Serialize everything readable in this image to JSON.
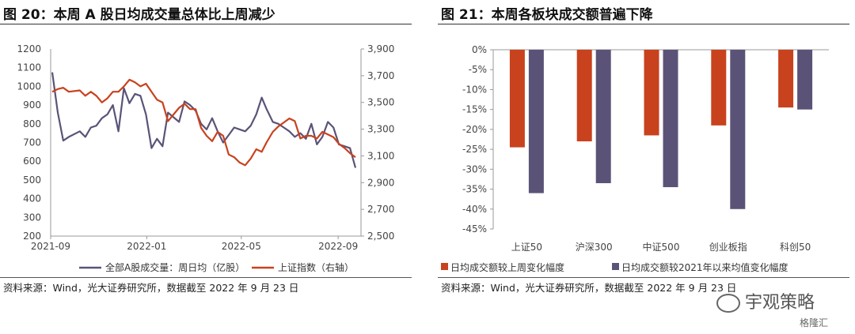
{
  "left": {
    "title": "图 20：本周 A 股日均成交量总体比上周减少",
    "source": "资料来源：Wind，光大证券研究所，数据截至 2022 年 9 月 23 日"
  },
  "right": {
    "title": "图 21：本周各板块成交额普遍下降",
    "source": "资料来源：Wind，光大证券研究所，数据截至 2022 年 9 月 23 日"
  },
  "watermark": {
    "main": "宇观策略",
    "sub": "格隆汇"
  },
  "colors": {
    "series_a": "#5b5377",
    "series_b": "#c8421e"
  },
  "chart_data": [
    {
      "type": "line",
      "title": "",
      "x_ticks": [
        "2021-09",
        "2022-01",
        "2022-05",
        "2022-09"
      ],
      "ylim_left": [
        200,
        1200
      ],
      "yticks_left": [
        "200",
        "300",
        "400",
        "500",
        "600",
        "700",
        "800",
        "900",
        "1000",
        "1100",
        "1200"
      ],
      "ylim_right": [
        2500,
        3900
      ],
      "yticks_right": [
        "2,500",
        "2,700",
        "2,900",
        "3,100",
        "3,300",
        "3,500",
        "3,700",
        "3,900"
      ],
      "legend_position": "bottom",
      "series": [
        {
          "name": "全部A股成交量：周日均（亿股）",
          "axis": "left",
          "color": "#5b5377",
          "x": [
            "2021-09-03",
            "2021-09-10",
            "2021-09-17",
            "2021-09-24",
            "2021-10-08",
            "2021-10-15",
            "2021-10-22",
            "2021-10-29",
            "2021-11-05",
            "2021-11-12",
            "2021-11-19",
            "2021-11-26",
            "2021-12-03",
            "2021-12-10",
            "2021-12-17",
            "2021-12-24",
            "2021-12-31",
            "2022-01-07",
            "2022-01-14",
            "2022-01-21",
            "2022-01-28",
            "2022-02-11",
            "2022-02-18",
            "2022-02-25",
            "2022-03-04",
            "2022-03-11",
            "2022-03-18",
            "2022-03-25",
            "2022-04-01",
            "2022-04-08",
            "2022-04-15",
            "2022-04-22",
            "2022-04-29",
            "2022-05-06",
            "2022-05-13",
            "2022-05-20",
            "2022-05-27",
            "2022-06-02",
            "2022-06-10",
            "2022-06-17",
            "2022-06-24",
            "2022-07-01",
            "2022-07-08",
            "2022-07-15",
            "2022-07-22",
            "2022-07-29",
            "2022-08-05",
            "2022-08-12",
            "2022-08-19",
            "2022-08-26",
            "2022-09-02",
            "2022-09-09",
            "2022-09-16",
            "2022-09-23"
          ],
          "y": [
            1075,
            860,
            710,
            730,
            760,
            730,
            780,
            790,
            830,
            850,
            900,
            760,
            990,
            910,
            960,
            950,
            850,
            670,
            720,
            680,
            860,
            810,
            920,
            900,
            870,
            800,
            770,
            830,
            760,
            700,
            740,
            780,
            770,
            760,
            790,
            850,
            940,
            880,
            810,
            800,
            780,
            760,
            730,
            750,
            720,
            800,
            690,
            730,
            810,
            780,
            690,
            680,
            670,
            565
          ]
        },
        {
          "name": "上证指数（右轴）",
          "axis": "right",
          "color": "#c8421e",
          "x": [
            "2021-09-03",
            "2021-09-10",
            "2021-09-17",
            "2021-09-24",
            "2021-10-08",
            "2021-10-15",
            "2021-10-22",
            "2021-10-29",
            "2021-11-05",
            "2021-11-12",
            "2021-11-19",
            "2021-11-26",
            "2021-12-03",
            "2021-12-10",
            "2021-12-17",
            "2021-12-24",
            "2021-12-31",
            "2022-01-07",
            "2022-01-14",
            "2022-01-21",
            "2022-01-28",
            "2022-02-11",
            "2022-02-18",
            "2022-02-25",
            "2022-03-04",
            "2022-03-11",
            "2022-03-18",
            "2022-03-25",
            "2022-04-01",
            "2022-04-08",
            "2022-04-15",
            "2022-04-22",
            "2022-04-29",
            "2022-05-06",
            "2022-05-13",
            "2022-05-20",
            "2022-05-27",
            "2022-06-02",
            "2022-06-10",
            "2022-06-17",
            "2022-06-24",
            "2022-07-01",
            "2022-07-08",
            "2022-07-15",
            "2022-07-22",
            "2022-07-29",
            "2022-08-05",
            "2022-08-12",
            "2022-08-19",
            "2022-08-26",
            "2022-09-02",
            "2022-09-09",
            "2022-09-16",
            "2022-09-23"
          ],
          "y": [
            3580,
            3600,
            3610,
            3580,
            3590,
            3550,
            3580,
            3550,
            3500,
            3530,
            3580,
            3580,
            3620,
            3670,
            3650,
            3620,
            3640,
            3580,
            3520,
            3500,
            3360,
            3460,
            3490,
            3450,
            3450,
            3310,
            3250,
            3210,
            3280,
            3250,
            3110,
            3090,
            3050,
            3030,
            3080,
            3150,
            3130,
            3200,
            3280,
            3320,
            3350,
            3380,
            3360,
            3230,
            3250,
            3250,
            3230,
            3280,
            3260,
            3240,
            3190,
            3160,
            3120,
            3090
          ]
        }
      ]
    },
    {
      "type": "bar",
      "title": "",
      "categories": [
        "上证50",
        "沪深300",
        "中证500",
        "创业板指",
        "科创50"
      ],
      "ylim": [
        -45,
        0
      ],
      "yticks": [
        "0%",
        "-5%",
        "-10%",
        "-15%",
        "-20%",
        "-25%",
        "-30%",
        "-35%",
        "-40%",
        "-45%"
      ],
      "legend_position": "bottom",
      "series": [
        {
          "name": "日均成交额较上周变化幅度",
          "color": "#c8421e",
          "values": [
            -24.5,
            -23.0,
            -21.5,
            -19.0,
            -14.5
          ]
        },
        {
          "name": "日均成交额较2021年以来均值变化幅度",
          "color": "#5b5377",
          "values": [
            -36.0,
            -33.5,
            -34.5,
            -40.0,
            -15.0
          ]
        }
      ]
    }
  ]
}
